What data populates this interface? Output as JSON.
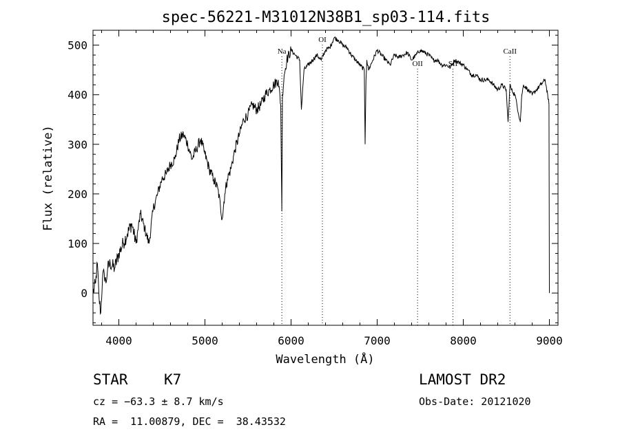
{
  "chart_data": {
    "type": "line",
    "title": "spec-56221-M31012N38B1_sp03-114.fits",
    "xlabel": "Wavelength (Å)",
    "ylabel": "Flux (relative)",
    "xlim": [
      3700,
      9100
    ],
    "ylim": [
      -65,
      530
    ],
    "xticks": [
      4000,
      5000,
      6000,
      7000,
      8000,
      9000
    ],
    "yticks": [
      0,
      100,
      200,
      300,
      400,
      500
    ],
    "grid": false,
    "line_color": "#000000",
    "series": [
      {
        "x": [
          3700,
          3730,
          3750,
          3770,
          3790,
          3810,
          3830,
          3850,
          3870,
          3900,
          3950,
          4000,
          4050,
          4100,
          4150,
          4200,
          4250,
          4300,
          4350,
          4400,
          4450,
          4500,
          4550,
          4600,
          4650,
          4700,
          4750,
          4800,
          4850,
          4900,
          4950,
          5000,
          5050,
          5100,
          5150,
          5180,
          5200,
          5230,
          5260,
          5300,
          5350,
          5400,
          5450,
          5500,
          5550,
          5600,
          5650,
          5700,
          5750,
          5800,
          5850,
          5880,
          5893,
          5900,
          5920,
          5950,
          6000,
          6050,
          6100,
          6120,
          6150,
          6200,
          6250,
          6300,
          6350,
          6400,
          6450,
          6500,
          6550,
          6600,
          6650,
          6700,
          6750,
          6800,
          6850,
          6860,
          6870,
          6880,
          6900,
          6950,
          7000,
          7050,
          7100,
          7150,
          7200,
          7250,
          7300,
          7350,
          7400,
          7450,
          7500,
          7550,
          7600,
          7650,
          7700,
          7750,
          7800,
          7850,
          7900,
          7950,
          8000,
          8050,
          8100,
          8150,
          8200,
          8250,
          8300,
          8350,
          8400,
          8450,
          8498,
          8520,
          8542,
          8560,
          8600,
          8662,
          8680,
          8700,
          8750,
          8800,
          8850,
          8900,
          8950,
          8980,
          8995,
          9000
        ],
        "y": [
          0,
          20,
          60,
          -10,
          -40,
          30,
          40,
          20,
          50,
          60,
          50,
          80,
          100,
          120,
          140,
          100,
          160,
          130,
          100,
          170,
          200,
          230,
          240,
          260,
          270,
          310,
          320,
          300,
          270,
          290,
          310,
          280,
          250,
          230,
          210,
          175,
          150,
          200,
          230,
          250,
          290,
          320,
          350,
          360,
          380,
          370,
          380,
          400,
          410,
          420,
          430,
          380,
          165,
          400,
          440,
          470,
          490,
          480,
          470,
          370,
          450,
          460,
          470,
          480,
          470,
          490,
          495,
          515,
          510,
          500,
          495,
          480,
          470,
          460,
          450,
          300,
          430,
          470,
          450,
          470,
          490,
          480,
          470,
          460,
          480,
          475,
          480,
          485,
          470,
          480,
          490,
          485,
          480,
          470,
          470,
          460,
          460,
          455,
          470,
          465,
          460,
          450,
          440,
          440,
          430,
          430,
          430,
          420,
          410,
          420,
          410,
          345,
          420,
          410,
          400,
          345,
          400,
          420,
          410,
          400,
          410,
          420,
          430,
          400,
          380,
          0
        ]
      }
    ],
    "annotations": [
      "Na",
      "OI",
      "OII",
      "SII",
      "CaII"
    ]
  },
  "info": {
    "object_class": "STAR",
    "subclass": "K7",
    "survey": "LAMOST DR2",
    "cz": "cz = −63.3 ± 8.7 km/s",
    "obs_date": "Obs-Date: 20121020",
    "coords": "RA =  11.00879, DEC =  38.43532"
  }
}
